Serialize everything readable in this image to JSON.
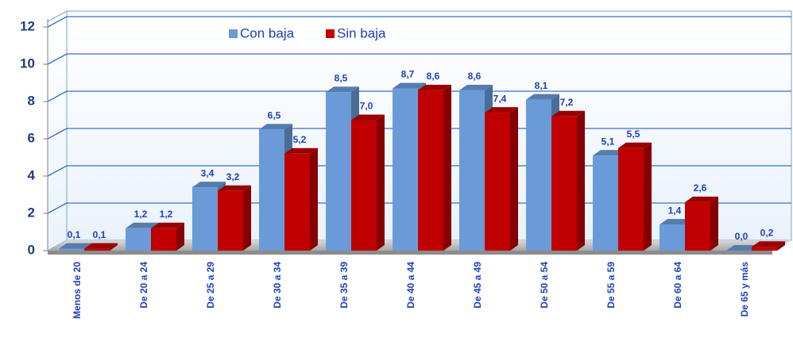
{
  "chart_data": {
    "type": "bar",
    "categories": [
      "Menos de 20",
      "De 20 a 24",
      "De 25 a 29",
      "De 30 a 34",
      "De 35 a 39",
      "De 40 a 44",
      "De 45 a 49",
      "De 50 a 54",
      "De 55 a 59",
      "De 60 a 64",
      "De 65 y más"
    ],
    "series": [
      {
        "name": "Con baja",
        "color": "#6a9bd8",
        "values": [
          0.1,
          1.2,
          3.4,
          6.5,
          8.5,
          8.7,
          8.6,
          8.1,
          5.1,
          1.4,
          0.0
        ],
        "value_labels": [
          "0,1",
          "1,2",
          "3,4",
          "6,5",
          "8,5",
          "8,7",
          "8,6",
          "8,1",
          "5,1",
          "1,4",
          "0,0"
        ]
      },
      {
        "name": "Sin baja",
        "color": "#c00000",
        "values": [
          0.1,
          1.2,
          3.2,
          5.2,
          7.0,
          8.6,
          7.4,
          7.2,
          5.5,
          2.6,
          0.2
        ],
        "value_labels": [
          "0,1",
          "1,2",
          "3,2",
          "5,2",
          "7,0",
          "8,6",
          "7,4",
          "7,2",
          "5,5",
          "2,6",
          "0,2"
        ]
      }
    ],
    "ylim": [
      0,
      12
    ],
    "yticks": [
      0,
      2,
      4,
      6,
      8,
      10,
      12
    ],
    "grid": true,
    "legend": "top"
  }
}
